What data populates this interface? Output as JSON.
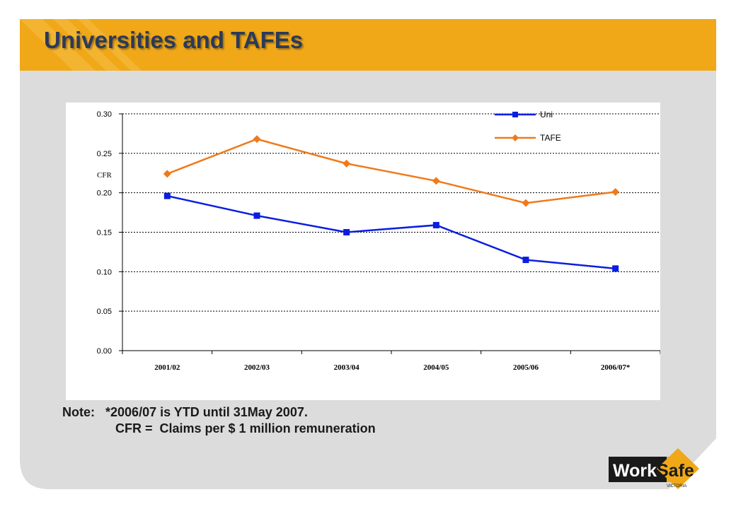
{
  "slide": {
    "title": "Universities and TAFEs",
    "colors": {
      "header": "#f0a818",
      "panel": "#dcdcdc",
      "uni": "#0a1ee0",
      "tafe": "#f07a1a"
    }
  },
  "note": {
    "prefix": "Note:",
    "line1": "*2006/07 is YTD until 31May 2007.",
    "line2": "CFR =  Claims per $ 1 million remuneration"
  },
  "logo": {
    "text_work": "Work",
    "text_safe": "Safe",
    "text_sub": "VICTORIA"
  },
  "chart_data": {
    "type": "line",
    "ylabel": "CFR",
    "categories": [
      "2001/02",
      "2002/03",
      "2003/04",
      "2004/05",
      "2005/06",
      "2006/07*"
    ],
    "ylim": [
      0,
      0.3
    ],
    "yticks": [
      "0.00",
      "0.05",
      "0.10",
      "0.15",
      "0.20",
      "0.25",
      "0.30"
    ],
    "grid": true,
    "legend_position": "top-right",
    "series": [
      {
        "name": "Uni",
        "color": "#0a1ee0",
        "marker": "square",
        "values": [
          0.196,
          0.171,
          0.15,
          0.159,
          0.115,
          0.104
        ]
      },
      {
        "name": "TAFE",
        "color": "#f07a1a",
        "marker": "diamond",
        "values": [
          0.224,
          0.268,
          0.237,
          0.215,
          0.187,
          0.201
        ]
      }
    ]
  }
}
